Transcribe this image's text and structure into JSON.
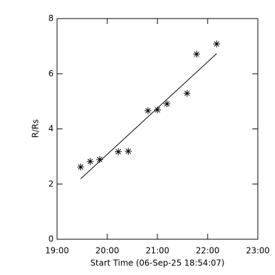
{
  "chart_data": {
    "type": "scatter",
    "x_label": "Start Time (06-Sep-25 18:54:07)",
    "y_label": "R/Rs",
    "series": [
      {
        "color": "#000000",
        "x": [
          19.47,
          19.66,
          19.85,
          20.22,
          20.42,
          20.81,
          21.0,
          21.19,
          21.59,
          21.78,
          22.18
        ],
        "values": [
          2.62,
          2.82,
          2.89,
          3.17,
          3.19,
          4.66,
          4.69,
          4.91,
          5.29,
          6.71,
          7.08
        ]
      }
    ],
    "fit": {
      "color": "#000000",
      "x": [
        19.47,
        22.18
      ],
      "values": [
        2.19,
        6.73
      ]
    },
    "xlim": [
      19,
      23
    ],
    "xticks": [
      {
        "value": 19,
        "label": "19:00"
      },
      {
        "value": 20,
        "label": "20:00"
      },
      {
        "value": 21,
        "label": "21:00"
      },
      {
        "value": 22,
        "label": "22:00"
      },
      {
        "value": 23,
        "label": "23:00"
      }
    ],
    "ylim": [
      0,
      8
    ],
    "yticks": [
      0,
      2,
      4,
      6,
      8
    ]
  }
}
